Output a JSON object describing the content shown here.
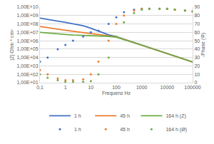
{
  "chart_data": {
    "type": "line",
    "x_label": "Frequenz Hz",
    "y_label": "|Z| Ohm * cm²",
    "y2_label": "-Phase (Φ)",
    "log": true,
    "grid": true,
    "legend": "bottom",
    "x": [
      0.1,
      0.2,
      0.5,
      1,
      2,
      5,
      10,
      20,
      50,
      100,
      200,
      500,
      1000,
      2000,
      5000,
      10000,
      20000,
      50000,
      100000
    ],
    "xlim": [
      0.1,
      100000
    ],
    "xticks": [
      {
        "value": 0.1,
        "label": "0,1"
      },
      1,
      10,
      100,
      1000,
      10000,
      100000
    ],
    "ylim": [
      10,
      10000000000
    ],
    "yticks": [
      {
        "value": 10,
        "label": "1,00E+01"
      },
      {
        "value": 100,
        "label": "1,00E+02"
      },
      {
        "value": 1000,
        "label": "1,00E+03"
      },
      {
        "value": 10000,
        "label": "1,00E+04"
      },
      {
        "value": 100000,
        "label": "1,00E+05"
      },
      {
        "value": 1000000,
        "label": "1,00E+06"
      },
      {
        "value": 10000000,
        "label": "1,00E+07"
      },
      {
        "value": 100000000,
        "label": "1,00E+08"
      },
      {
        "value": 1000000000,
        "label": "1,00E+09"
      },
      {
        "value": 10000000000,
        "label": "1,00E+10"
      }
    ],
    "y2lim": [
      0,
      90
    ],
    "y2ticks": [
      0,
      10,
      20,
      30,
      40,
      50,
      60,
      70,
      80,
      90
    ],
    "series": [
      {
        "name": "1 h",
        "type": "line",
        "line_style": "solid",
        "color": "#4472c4",
        "values": [
          500000000,
          330000000,
          220000000,
          150000000,
          100000000,
          60000000,
          30000000,
          14000000,
          5000000,
          3000000,
          1500000,
          600000,
          300000,
          150000,
          60000,
          30000,
          15000,
          6000,
          3000
        ]
      },
      {
        "name": "45 h",
        "type": "line",
        "line_style": "solid",
        "color": "#ed7d31",
        "values": [
          50000000,
          35000000,
          24000000,
          18000000,
          13000000,
          9000000,
          7000000,
          5500000,
          4000000,
          2800000,
          1500000,
          600000,
          300000,
          150000,
          60000,
          30000,
          15000,
          6000,
          3000
        ]
      },
      {
        "name": "164 h (Z)",
        "type": "line",
        "line_style": "solid",
        "color": "#70ad47",
        "values": [
          10000000,
          8000000,
          6500000,
          5500000,
          4800000,
          4300000,
          4000000,
          3700000,
          3300000,
          2600000,
          1400000,
          580000,
          290000,
          145000,
          58000,
          29000,
          14500,
          5800,
          2900
        ]
      },
      {
        "name": "1 h",
        "type": "scatter",
        "marker": "circle",
        "color": "#4472c4",
        "axis": "y2",
        "values": [
          25,
          30,
          40,
          45,
          50,
          55,
          60,
          62,
          70,
          78,
          84,
          87,
          88,
          88,
          88,
          88,
          87,
          86,
          85
        ]
      },
      {
        "name": "45 h",
        "type": "scatter",
        "marker": "circle",
        "color": "#ed7d31",
        "axis": "y2",
        "values": [
          15,
          10,
          5,
          3,
          3,
          4,
          10,
          25,
          50,
          70,
          80,
          86,
          88,
          88,
          88,
          88,
          87,
          86,
          85
        ]
      },
      {
        "name": "164 h (Ø)",
        "type": "scatter",
        "marker": "circle",
        "color": "#70ad47",
        "axis": "y2",
        "values": [
          10,
          6,
          3,
          1,
          1,
          1,
          2,
          10,
          30,
          55,
          72,
          83,
          87,
          88,
          88,
          88,
          87,
          86,
          85
        ]
      }
    ]
  }
}
